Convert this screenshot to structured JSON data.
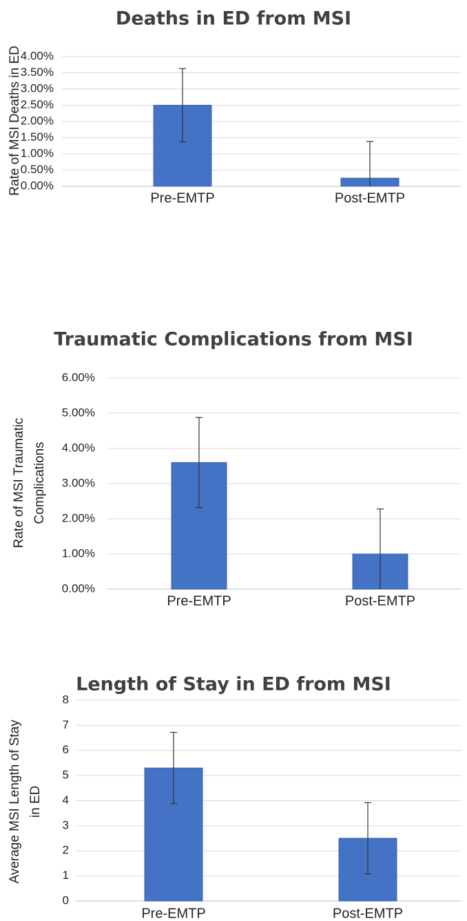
{
  "chart_data": [
    {
      "type": "bar",
      "title": "Deaths in ED from MSI",
      "ylabel": "Rate of MSI Deaths in ED",
      "categories": [
        "Pre-EMTP",
        "Post-EMTP"
      ],
      "values": [
        2.5,
        0.25
      ],
      "errors": [
        1.13,
        1.13
      ],
      "color": "#4472c4",
      "ylim": [
        0,
        4
      ],
      "yticks": [
        {
          "value": 0,
          "label": "0.00%"
        },
        {
          "value": 0.5,
          "label": "0.50%"
        },
        {
          "value": 1,
          "label": "1.00%"
        },
        {
          "value": 1.5,
          "label": "1.50%"
        },
        {
          "value": 2,
          "label": "2.00%"
        },
        {
          "value": 2.5,
          "label": "2.50%"
        },
        {
          "value": 3,
          "label": "3.00%"
        },
        {
          "value": 3.5,
          "label": "3.50%"
        },
        {
          "value": 4,
          "label": "4.00%"
        }
      ],
      "grid": true
    },
    {
      "type": "bar",
      "title": "Traumatic Complications from MSI",
      "ylabel": [
        "Rate of MSI Traumatic",
        "Complications"
      ],
      "categories": [
        "Pre-EMTP",
        "Post-EMTP"
      ],
      "values": [
        3.6,
        1.0
      ],
      "errors": [
        1.28,
        1.28
      ],
      "color": "#4472c4",
      "ylim": [
        0,
        6
      ],
      "yticks": [
        {
          "value": 0,
          "label": "0.00%"
        },
        {
          "value": 1,
          "label": "1.00%"
        },
        {
          "value": 2,
          "label": "2.00%"
        },
        {
          "value": 3,
          "label": "3.00%"
        },
        {
          "value": 4,
          "label": "4.00%"
        },
        {
          "value": 5,
          "label": "5.00%"
        },
        {
          "value": 6,
          "label": "6.00%"
        }
      ],
      "grid": true
    },
    {
      "type": "bar",
      "title": "Length of Stay in ED from MSI",
      "ylabel": [
        "Average MSI Length of Stay",
        "in ED"
      ],
      "categories": [
        "Pre-EMTP",
        "Post-EMTP"
      ],
      "values": [
        5.3,
        2.5
      ],
      "errors": [
        1.42,
        1.42
      ],
      "color": "#4472c4",
      "ylim": [
        0,
        8
      ],
      "yticks": [
        0,
        1,
        2,
        3,
        4,
        5,
        6,
        7,
        8
      ],
      "grid": true
    }
  ]
}
